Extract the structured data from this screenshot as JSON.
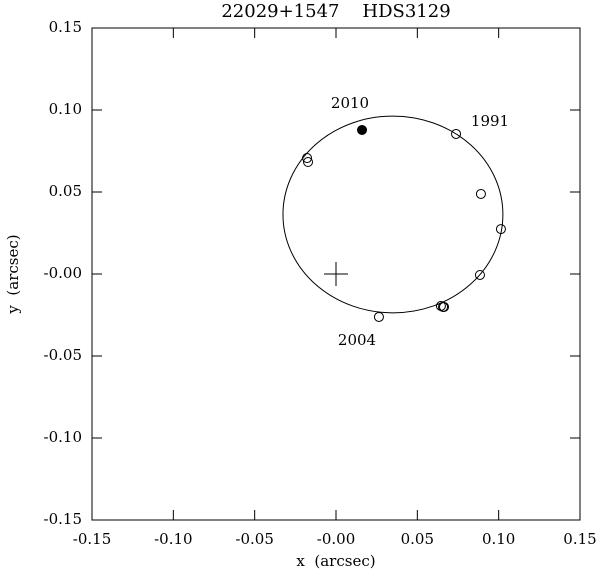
{
  "chart_data": {
    "type": "scatter",
    "title": "22029+1547    HDS3129",
    "x_label": "x  (arcsec)",
    "y_label": "y  (arcsec)",
    "xlim": [
      -0.15,
      0.15
    ],
    "ylim": [
      -0.15,
      0.15
    ],
    "xticks": [
      -0.15,
      {
        "value": -0.1,
        "label": "-0.10"
      },
      -0.05,
      {
        "value": 0,
        "label": "-0.00"
      },
      0.05,
      {
        "value": 0.1,
        "label": "0.10"
      },
      0.15
    ],
    "yticks": [
      -0.15,
      {
        "value": -0.1,
        "label": "-0.10"
      },
      -0.05,
      {
        "value": 0,
        "label": "-0.00"
      },
      0.05,
      {
        "value": 0.1,
        "label": "0.10"
      },
      0.15
    ],
    "series": [
      {
        "color": "#000000",
        "filled": false,
        "x": [
          -0.0178,
          -0.0172,
          0.0738,
          0.0891,
          0.1014,
          0.0885,
          0.0645,
          0.0658,
          0.0664,
          0.0264
        ],
        "y": [
          0.0707,
          0.0683,
          0.0854,
          0.0488,
          0.0274,
          -0.0006,
          -0.0195,
          -0.0201,
          -0.0201,
          -0.0262
        ]
      },
      {
        "color": "#000000",
        "filled": true,
        "x": [
          0.016
        ],
        "y": [
          0.0878
        ]
      }
    ],
    "orbit": {
      "center": [
        0.035,
        0.0363
      ],
      "rx": 0.0676,
      "ry": 0.06
    },
    "primary": {
      "x": 0,
      "y": 0
    },
    "annotations": [
      "2010",
      "1991",
      "2004"
    ]
  }
}
